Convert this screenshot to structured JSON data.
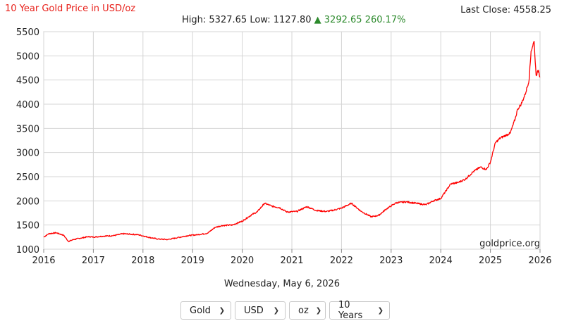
{
  "header": {
    "title": "10 Year Gold Price in USD/oz",
    "last_close_label": "Last Close:",
    "last_close_value": "4558.25",
    "high_label": "High:",
    "high_value": "5327.65",
    "low_label": "Low:",
    "low_value": "1127.80",
    "change_arrow": "▲",
    "change_value": "3292.65",
    "change_percent": "260.17%"
  },
  "watermark": "goldprice.org",
  "date_text": "Wednesday, May 6, 2026",
  "selectors": {
    "metal": "Gold",
    "currency": "USD",
    "unit": "oz",
    "range": "10 Years"
  },
  "colors": {
    "line": "#ff0000",
    "title": "#e8201a",
    "change_up": "#2c8a2c",
    "grid": "#d4d4d4"
  },
  "chart_data": {
    "type": "line",
    "title": "10 Year Gold Price in USD/oz",
    "xlabel": "",
    "ylabel": "",
    "xlim": [
      2016.0,
      2026.0
    ],
    "ylim": [
      1000,
      5500
    ],
    "x_ticks": [
      "2016",
      "2017",
      "2018",
      "2019",
      "2020",
      "2021",
      "2022",
      "2023",
      "2024",
      "2025",
      "2026"
    ],
    "y_ticks": [
      "1000",
      "1500",
      "2000",
      "2500",
      "3000",
      "3500",
      "4000",
      "4500",
      "5000",
      "5500"
    ],
    "grid": true,
    "series": [
      {
        "x": [
          2016.0,
          2016.1,
          2016.25,
          2016.4,
          2016.5,
          2016.6,
          2016.75,
          2016.9,
          2017.0,
          2017.2,
          2017.4,
          2017.6,
          2017.75,
          2017.9,
          2018.1,
          2018.3,
          2018.5,
          2018.7,
          2018.9,
          2019.1,
          2019.3,
          2019.45,
          2019.6,
          2019.8,
          2020.0,
          2020.2,
          2020.3,
          2020.45,
          2020.6,
          2020.75,
          2020.9,
          2021.1,
          2021.3,
          2021.5,
          2021.7,
          2021.85,
          2022.0,
          2022.2,
          2022.4,
          2022.6,
          2022.75,
          2022.9,
          2023.1,
          2023.3,
          2023.5,
          2023.7,
          2023.85,
          2024.0,
          2024.2,
          2024.35,
          2024.5,
          2024.65,
          2024.8,
          2024.92,
          2025.0,
          2025.1,
          2025.2,
          2025.3,
          2025.4,
          2025.5,
          2025.55,
          2025.62,
          2025.7,
          2025.78,
          2025.82,
          2025.88,
          2025.92,
          2025.97,
          2026.0
        ],
        "y": [
          1250,
          1320,
          1340,
          1290,
          1160,
          1200,
          1230,
          1260,
          1250,
          1270,
          1280,
          1320,
          1310,
          1300,
          1250,
          1210,
          1200,
          1240,
          1280,
          1300,
          1330,
          1450,
          1490,
          1500,
          1580,
          1720,
          1770,
          1950,
          1890,
          1860,
          1770,
          1780,
          1880,
          1800,
          1780,
          1810,
          1850,
          1950,
          1780,
          1670,
          1700,
          1830,
          1960,
          1980,
          1950,
          1920,
          2000,
          2050,
          2350,
          2380,
          2450,
          2600,
          2700,
          2650,
          2800,
          3200,
          3300,
          3350,
          3400,
          3700,
          3900,
          4000,
          4200,
          4500,
          5100,
          5300,
          4600,
          4700,
          4558
        ]
      }
    ]
  }
}
